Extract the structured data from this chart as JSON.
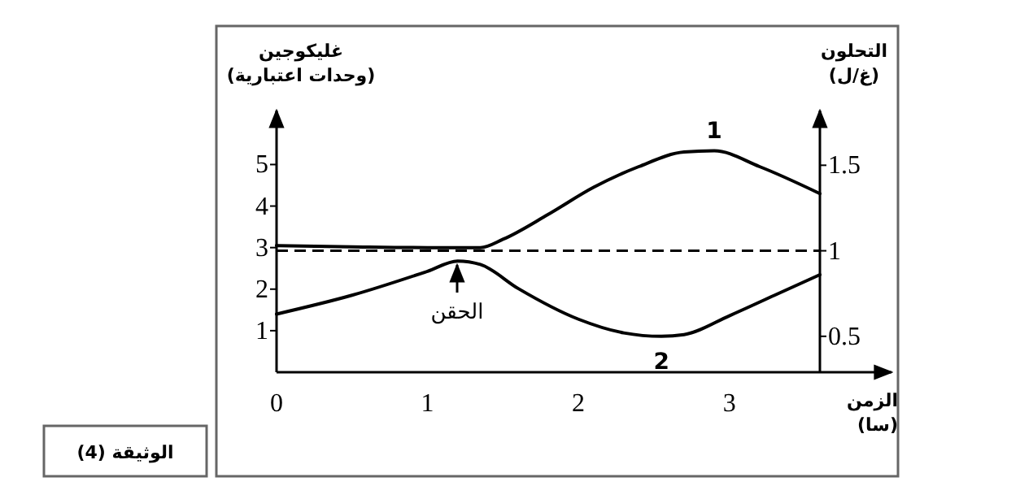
{
  "chart_data": {
    "type": "line",
    "xlabel": "الزمن (سا)",
    "ylabel": "غليكوجين (وحدات اعتبارية)",
    "y2label": "التحلون (غ/ل)",
    "xlim": [
      0,
      3.6
    ],
    "xticks": [
      0,
      1,
      2,
      3
    ],
    "ylim": [
      0,
      6.3
    ],
    "yticks": [
      1,
      2,
      3,
      4,
      5
    ],
    "y2lim": [
      0.29,
      1.82
    ],
    "y2ticks": [
      0.5,
      1,
      1.5
    ],
    "series": [
      {
        "name": "1",
        "color": "#000000",
        "x": [
          0,
          0.5,
          1.0,
          1.35,
          1.5,
          1.8,
          2.1,
          2.4,
          2.7,
          2.9,
          3.2,
          3.6
        ],
        "values": [
          3.05,
          3.02,
          3.0,
          3.0,
          3.2,
          3.8,
          4.45,
          4.95,
          5.3,
          5.33,
          4.95,
          4.3
        ]
      },
      {
        "name": "2",
        "color": "#000000",
        "axis": "y2",
        "x": [
          0,
          0.5,
          1.0,
          1.2,
          1.35,
          1.6,
          2.0,
          2.3,
          2.55,
          2.7,
          3.0,
          3.3,
          3.6
        ],
        "values": [
          0.63,
          0.74,
          0.88,
          0.94,
          0.92,
          0.78,
          0.6,
          0.52,
          0.5,
          0.51,
          0.62,
          0.74,
          0.86
        ]
      }
    ],
    "ref_lines": [
      {
        "axis": "y2",
        "value": 1,
        "line_style": "dashed",
        "color": "#000000"
      }
    ],
    "annotations": [
      "الحقن",
      "الوثيقة (4)"
    ],
    "marker": "none",
    "line_style": "solid",
    "grid": false,
    "legend": false
  }
}
